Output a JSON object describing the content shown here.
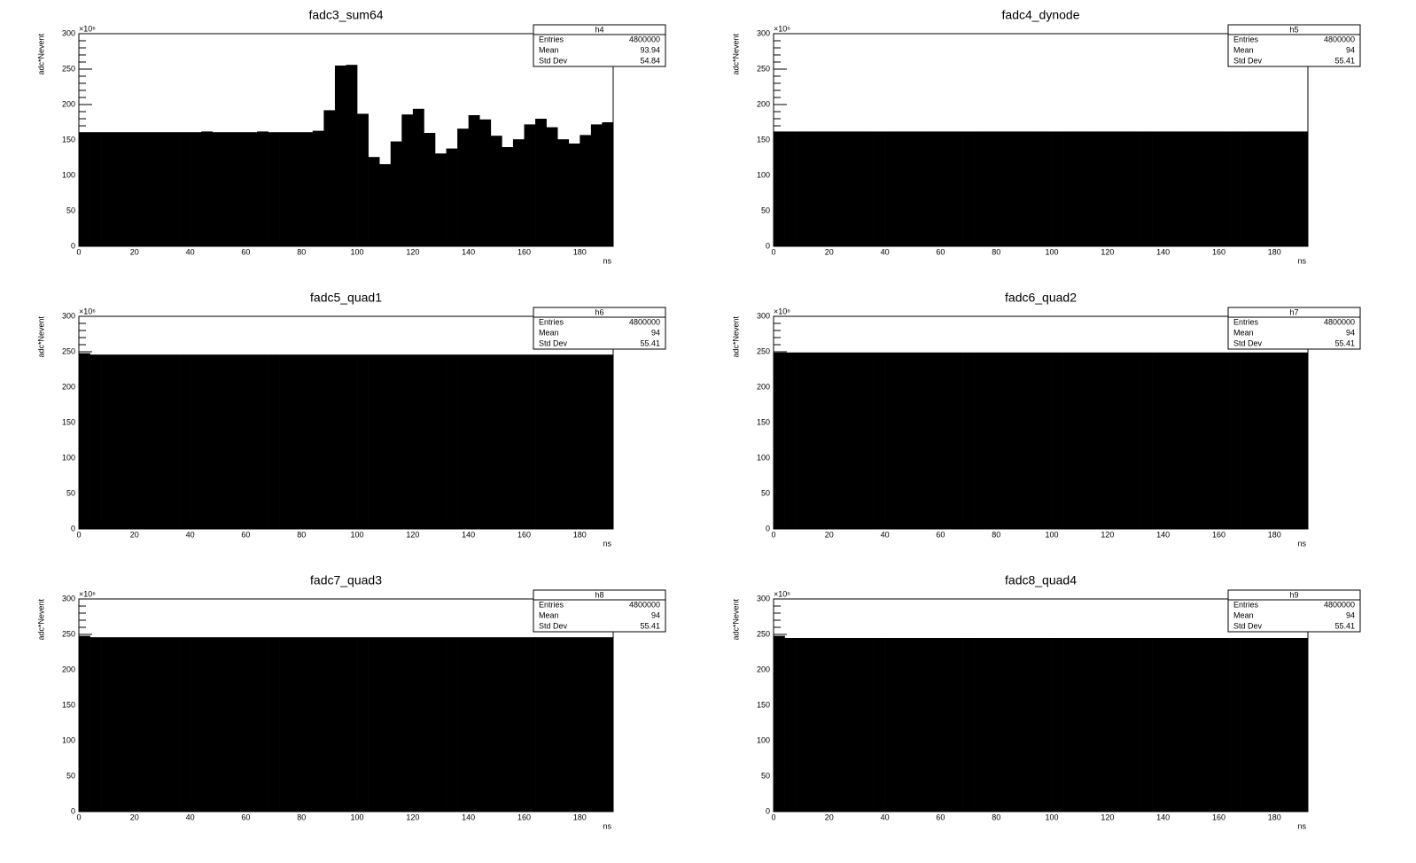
{
  "chart_data": [
    {
      "type": "histogram",
      "title": "fadc3_sum64",
      "xlabel": "ns",
      "ylabel": "adc*Nevent",
      "y_multiplier": "×10⁶",
      "color": "#000000",
      "bins": [
        0,
        4,
        8,
        12,
        16,
        20,
        24,
        28,
        32,
        36,
        40,
        44,
        48,
        52,
        56,
        60,
        64,
        68,
        72,
        76,
        80,
        84,
        88,
        92,
        96,
        100,
        104,
        108,
        112,
        116,
        120,
        124,
        128,
        132,
        136,
        140,
        144,
        148,
        152,
        156,
        160,
        164,
        168,
        172,
        176,
        180,
        184,
        188,
        192
      ],
      "values": [
        161,
        161,
        161,
        161,
        161,
        161,
        161,
        161,
        161,
        161,
        161,
        162,
        161,
        161,
        161,
        161,
        162,
        161,
        161,
        161,
        161,
        163,
        192,
        255,
        256,
        187,
        126,
        116,
        148,
        186,
        194,
        160,
        131,
        138,
        166,
        185,
        179,
        156,
        140,
        151,
        172,
        180,
        168,
        151,
        145,
        157,
        172,
        175
      ],
      "xlim": [
        0,
        192
      ],
      "ylim": [
        0,
        300
      ],
      "xticks": [
        0,
        20,
        40,
        60,
        80,
        100,
        120,
        140,
        160,
        180
      ],
      "yticks": [
        0,
        50,
        100,
        150,
        200,
        250,
        300
      ],
      "stats": {
        "name": "h4",
        "rows": [
          {
            "label": "Entries",
            "value": 4800000
          },
          {
            "label": "Mean",
            "value": 93.94
          },
          {
            "label": "Std Dev",
            "value": 54.84
          }
        ]
      }
    },
    {
      "type": "histogram",
      "title": "fadc4_dynode",
      "xlabel": "ns",
      "ylabel": "adc*Nevent",
      "y_multiplier": "×10⁶",
      "color": "#000000",
      "bins": [
        0,
        4,
        8,
        12,
        16,
        20,
        24,
        28,
        32,
        36,
        40,
        44,
        48,
        52,
        56,
        60,
        64,
        68,
        72,
        76,
        80,
        84,
        88,
        92,
        96,
        100,
        104,
        108,
        112,
        116,
        120,
        124,
        128,
        132,
        136,
        140,
        144,
        148,
        152,
        156,
        160,
        164,
        168,
        172,
        176,
        180,
        184,
        188,
        192
      ],
      "values": [
        162,
        162,
        162,
        162,
        162,
        162,
        162,
        162,
        162,
        162,
        162,
        162,
        162,
        162,
        162,
        162,
        162,
        162,
        162,
        162,
        162,
        162,
        162,
        162,
        162,
        162,
        162,
        162,
        162,
        162,
        162,
        162,
        162,
        162,
        162,
        162,
        162,
        162,
        162,
        162,
        162,
        162,
        162,
        162,
        162,
        162,
        162,
        162
      ],
      "xlim": [
        0,
        192
      ],
      "ylim": [
        0,
        300
      ],
      "xticks": [
        0,
        20,
        40,
        60,
        80,
        100,
        120,
        140,
        160,
        180
      ],
      "yticks": [
        0,
        50,
        100,
        150,
        200,
        250,
        300
      ],
      "stats": {
        "name": "h5",
        "rows": [
          {
            "label": "Entries",
            "value": 4800000
          },
          {
            "label": "Mean",
            "value": 94
          },
          {
            "label": "Std Dev",
            "value": 55.41
          }
        ]
      }
    },
    {
      "type": "histogram",
      "title": "fadc5_quad1",
      "xlabel": "ns",
      "ylabel": "adc*Nevent",
      "y_multiplier": "×10⁶",
      "color": "#000000",
      "bins": [
        0,
        4,
        8,
        12,
        16,
        20,
        24,
        28,
        32,
        36,
        40,
        44,
        48,
        52,
        56,
        60,
        64,
        68,
        72,
        76,
        80,
        84,
        88,
        92,
        96,
        100,
        104,
        108,
        112,
        116,
        120,
        124,
        128,
        132,
        136,
        140,
        144,
        148,
        152,
        156,
        160,
        164,
        168,
        172,
        176,
        180,
        184,
        188,
        192
      ],
      "values": [
        248,
        246,
        246,
        246,
        246,
        246,
        246,
        246,
        246,
        246,
        246,
        246,
        246,
        246,
        246,
        246,
        246,
        246,
        246,
        246,
        246,
        246,
        246,
        246,
        246,
        246,
        246,
        246,
        246,
        246,
        246,
        246,
        246,
        246,
        246,
        246,
        246,
        246,
        246,
        246,
        246,
        246,
        246,
        246,
        246,
        246,
        246,
        246
      ],
      "xlim": [
        0,
        192
      ],
      "ylim": [
        0,
        300
      ],
      "xticks": [
        0,
        20,
        40,
        60,
        80,
        100,
        120,
        140,
        160,
        180
      ],
      "yticks": [
        0,
        50,
        100,
        150,
        200,
        250,
        300
      ],
      "stats": {
        "name": "h6",
        "rows": [
          {
            "label": "Entries",
            "value": 4800000
          },
          {
            "label": "Mean",
            "value": 94
          },
          {
            "label": "Std Dev",
            "value": 55.41
          }
        ]
      }
    },
    {
      "type": "histogram",
      "title": "fadc6_quad2",
      "xlabel": "ns",
      "ylabel": "adc*Nevent",
      "y_multiplier": "×10⁶",
      "color": "#000000",
      "bins": [
        0,
        4,
        8,
        12,
        16,
        20,
        24,
        28,
        32,
        36,
        40,
        44,
        48,
        52,
        56,
        60,
        64,
        68,
        72,
        76,
        80,
        84,
        88,
        92,
        96,
        100,
        104,
        108,
        112,
        116,
        120,
        124,
        128,
        132,
        136,
        140,
        144,
        148,
        152,
        156,
        160,
        164,
        168,
        172,
        176,
        180,
        184,
        188,
        192
      ],
      "values": [
        249,
        249,
        249,
        249,
        249,
        249,
        249,
        249,
        249,
        249,
        249,
        249,
        249,
        249,
        249,
        249,
        249,
        249,
        249,
        249,
        249,
        249,
        249,
        249,
        249,
        249,
        249,
        249,
        249,
        249,
        249,
        249,
        249,
        249,
        249,
        249,
        249,
        249,
        249,
        249,
        249,
        249,
        249,
        249,
        249,
        249,
        249,
        249
      ],
      "xlim": [
        0,
        192
      ],
      "ylim": [
        0,
        300
      ],
      "xticks": [
        0,
        20,
        40,
        60,
        80,
        100,
        120,
        140,
        160,
        180
      ],
      "yticks": [
        0,
        50,
        100,
        150,
        200,
        250,
        300
      ],
      "stats": {
        "name": "h7",
        "rows": [
          {
            "label": "Entries",
            "value": 4800000
          },
          {
            "label": "Mean",
            "value": 94
          },
          {
            "label": "Std Dev",
            "value": 55.41
          }
        ]
      }
    },
    {
      "type": "histogram",
      "title": "fadc7_quad3",
      "xlabel": "ns",
      "ylabel": "adc*Nevent",
      "y_multiplier": "×10⁶",
      "color": "#000000",
      "bins": [
        0,
        4,
        8,
        12,
        16,
        20,
        24,
        28,
        32,
        36,
        40,
        44,
        48,
        52,
        56,
        60,
        64,
        68,
        72,
        76,
        80,
        84,
        88,
        92,
        96,
        100,
        104,
        108,
        112,
        116,
        120,
        124,
        128,
        132,
        136,
        140,
        144,
        148,
        152,
        156,
        160,
        164,
        168,
        172,
        176,
        180,
        184,
        188,
        192
      ],
      "values": [
        248,
        246,
        246,
        246,
        246,
        246,
        246,
        246,
        246,
        246,
        246,
        246,
        246,
        246,
        246,
        246,
        246,
        246,
        246,
        246,
        246,
        246,
        246,
        246,
        246,
        246,
        246,
        246,
        246,
        246,
        246,
        246,
        246,
        246,
        246,
        246,
        246,
        246,
        246,
        246,
        246,
        246,
        246,
        246,
        246,
        246,
        246,
        246
      ],
      "xlim": [
        0,
        192
      ],
      "ylim": [
        0,
        300
      ],
      "xticks": [
        0,
        20,
        40,
        60,
        80,
        100,
        120,
        140,
        160,
        180
      ],
      "yticks": [
        0,
        50,
        100,
        150,
        200,
        250,
        300
      ],
      "stats": {
        "name": "h8",
        "rows": [
          {
            "label": "Entries",
            "value": 4800000
          },
          {
            "label": "Mean",
            "value": 94
          },
          {
            "label": "Std Dev",
            "value": 55.41
          }
        ]
      }
    },
    {
      "type": "histogram",
      "title": "fadc8_quad4",
      "xlabel": "ns",
      "ylabel": "adc*Nevent",
      "y_multiplier": "×10⁶",
      "color": "#000000",
      "bins": [
        0,
        4,
        8,
        12,
        16,
        20,
        24,
        28,
        32,
        36,
        40,
        44,
        48,
        52,
        56,
        60,
        64,
        68,
        72,
        76,
        80,
        84,
        88,
        92,
        96,
        100,
        104,
        108,
        112,
        116,
        120,
        124,
        128,
        132,
        136,
        140,
        144,
        148,
        152,
        156,
        160,
        164,
        168,
        172,
        176,
        180,
        184,
        188,
        192
      ],
      "values": [
        248,
        245,
        245,
        245,
        245,
        245,
        245,
        245,
        245,
        245,
        245,
        245,
        245,
        245,
        245,
        245,
        245,
        245,
        245,
        245,
        245,
        245,
        245,
        245,
        245,
        245,
        245,
        245,
        245,
        245,
        245,
        245,
        245,
        245,
        245,
        245,
        245,
        245,
        245,
        245,
        245,
        245,
        245,
        245,
        245,
        245,
        245,
        245
      ],
      "xlim": [
        0,
        192
      ],
      "ylim": [
        0,
        300
      ],
      "xticks": [
        0,
        20,
        40,
        60,
        80,
        100,
        120,
        140,
        160,
        180
      ],
      "yticks": [
        0,
        50,
        100,
        150,
        200,
        250,
        300
      ],
      "stats": {
        "name": "h9",
        "rows": [
          {
            "label": "Entries",
            "value": 4800000
          },
          {
            "label": "Mean",
            "value": 94
          },
          {
            "label": "Std Dev",
            "value": 55.41
          }
        ]
      }
    }
  ]
}
